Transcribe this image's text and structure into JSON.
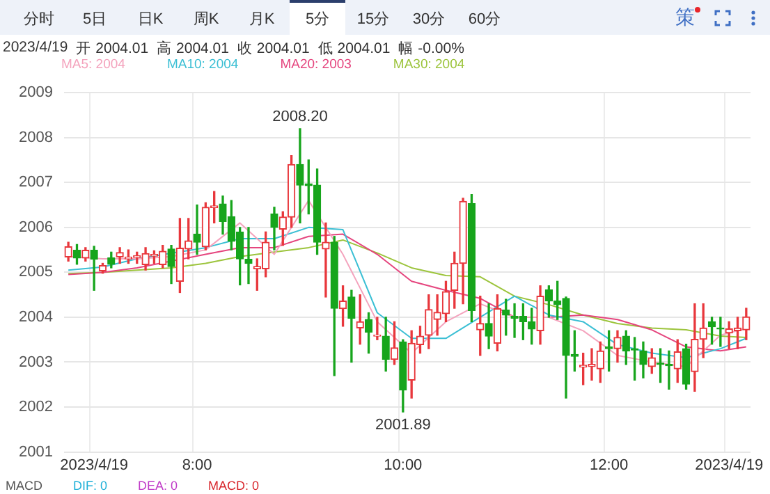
{
  "chart_data": {
    "type": "candlestick",
    "categories": [
      null,
      null,
      null,
      "2023/4/19",
      null,
      null,
      null,
      null,
      null,
      null,
      null,
      null,
      null,
      null,
      null,
      "8:00",
      null,
      null,
      null,
      null,
      null,
      null,
      null,
      null,
      null,
      null,
      null,
      null,
      null,
      null,
      null,
      null,
      null,
      null,
      null,
      null,
      null,
      null,
      null,
      "10:00",
      null,
      null,
      null,
      null,
      null,
      null,
      null,
      null,
      null,
      null,
      null,
      null,
      null,
      null,
      null,
      null,
      null,
      null,
      null,
      null,
      null,
      null,
      null,
      "12:00",
      null,
      null,
      null,
      null,
      null,
      null,
      null,
      null,
      null,
      null,
      null,
      null,
      null,
      "2023/4/19",
      null,
      null
    ],
    "ohlc": [
      [
        2005.34,
        2005.67,
        2005.25,
        2005.57
      ],
      [
        2005.49,
        2005.62,
        2005.18,
        2005.32
      ],
      [
        2005.32,
        2005.55,
        2005.25,
        2005.49
      ],
      [
        2005.49,
        2005.58,
        2004.6,
        2005.29
      ],
      [
        2005.03,
        2005.2,
        2004.98,
        2005.15
      ],
      [
        2005.32,
        2005.45,
        2005.1,
        2005.18
      ],
      [
        2005.34,
        2005.55,
        2005.2,
        2005.44
      ],
      [
        2005.3,
        2005.5,
        2005.2,
        2005.34
      ],
      [
        2005.33,
        2005.45,
        2005.2,
        2005.37
      ],
      [
        2005.17,
        2005.55,
        2005.05,
        2005.42
      ],
      [
        2005.36,
        2005.48,
        2005.2,
        2005.4
      ],
      [
        2005.17,
        2005.6,
        2005.1,
        2005.47
      ],
      [
        2005.52,
        2005.6,
        2004.75,
        2005.13
      ],
      [
        2004.8,
        2006.2,
        2004.55,
        2005.54
      ],
      [
        2005.52,
        2006.2,
        2005.3,
        2005.7
      ],
      [
        2005.85,
        2006.5,
        2005.4,
        2005.67
      ],
      [
        2005.57,
        2006.55,
        2005.5,
        2006.45
      ],
      [
        2006.44,
        2006.8,
        2006.1,
        2006.48
      ],
      [
        2006.52,
        2006.7,
        2005.85,
        2006.13
      ],
      [
        2006.24,
        2006.6,
        2005.5,
        2005.69
      ],
      [
        2005.9,
        2006.0,
        2004.72,
        2005.3
      ],
      [
        2005.29,
        2006.0,
        2004.75,
        2005.2
      ],
      [
        2005.08,
        2005.3,
        2004.6,
        2005.13
      ],
      [
        2005.08,
        2005.9,
        2004.9,
        2005.67
      ],
      [
        2006.3,
        2006.45,
        2005.5,
        2006.0
      ],
      [
        2005.96,
        2006.35,
        2005.6,
        2006.23
      ],
      [
        2006.23,
        2007.6,
        2006.0,
        2007.4
      ],
      [
        2007.4,
        2008.2,
        2006.1,
        2006.94
      ],
      [
        2006.97,
        2007.5,
        2006.3,
        2006.93
      ],
      [
        2006.94,
        2007.3,
        2005.4,
        2005.67
      ],
      [
        2005.52,
        2006.1,
        2004.45,
        2005.67
      ],
      [
        2005.67,
        2005.8,
        2002.7,
        2004.2
      ],
      [
        2004.19,
        2004.7,
        2003.8,
        2004.36
      ],
      [
        2004.45,
        2004.6,
        2003.0,
        2003.98
      ],
      [
        2003.76,
        2004.5,
        2003.4,
        2003.9
      ],
      [
        2003.95,
        2004.1,
        2003.2,
        2003.67
      ],
      [
        2003.58,
        2004.0,
        2003.5,
        2003.6
      ],
      [
        2003.58,
        2004.0,
        2002.8,
        2003.06
      ],
      [
        2003.06,
        2003.9,
        2002.95,
        2003.32
      ],
      [
        2003.45,
        2003.5,
        2001.89,
        2002.38
      ],
      [
        2002.6,
        2003.7,
        2002.2,
        2003.42
      ],
      [
        2003.39,
        2003.8,
        2003.2,
        2003.58
      ],
      [
        2003.6,
        2004.5,
        2003.3,
        2004.17
      ],
      [
        2003.95,
        2004.5,
        2003.6,
        2004.11
      ],
      [
        2004.08,
        2004.8,
        2003.9,
        2004.57
      ],
      [
        2004.6,
        2005.45,
        2004.2,
        2005.2
      ],
      [
        2005.2,
        2006.65,
        2004.3,
        2006.58
      ],
      [
        2006.53,
        2006.73,
        2003.9,
        2004.15
      ],
      [
        2003.72,
        2004.47,
        2003.15,
        2003.86
      ],
      [
        2003.86,
        2004.3,
        2003.3,
        2003.58
      ],
      [
        2003.42,
        2004.5,
        2003.25,
        2004.19
      ],
      [
        2004.16,
        2004.4,
        2003.6,
        2004.05
      ],
      [
        2004.02,
        2004.3,
        2003.55,
        2003.98
      ],
      [
        2004.02,
        2004.3,
        2003.5,
        2003.9
      ],
      [
        2003.9,
        2004.2,
        2003.4,
        2003.74
      ],
      [
        2003.7,
        2004.7,
        2003.4,
        2004.47
      ],
      [
        2004.61,
        2004.7,
        2004.0,
        2004.36
      ],
      [
        2004.36,
        2004.8,
        2003.95,
        2004.28
      ],
      [
        2004.42,
        2004.45,
        2002.2,
        2003.15
      ],
      [
        2003.17,
        2003.7,
        2002.8,
        2003.13
      ],
      [
        2002.89,
        2003.2,
        2002.5,
        2002.93
      ],
      [
        2002.9,
        2003.3,
        2002.6,
        2002.95
      ],
      [
        2002.85,
        2003.45,
        2002.55,
        2003.25
      ],
      [
        2003.34,
        2003.7,
        2002.8,
        2003.3
      ],
      [
        2003.3,
        2003.7,
        2003.0,
        2003.55
      ],
      [
        2003.58,
        2003.7,
        2002.95,
        2003.25
      ],
      [
        2003.3,
        2003.55,
        2002.6,
        2003.27
      ],
      [
        2003.25,
        2003.45,
        2002.65,
        2002.95
      ],
      [
        2002.9,
        2003.3,
        2002.75,
        2003.1
      ],
      [
        2002.98,
        2003.3,
        2002.55,
        2002.95
      ],
      [
        2002.95,
        2003.25,
        2002.4,
        2002.92
      ],
      [
        2002.85,
        2003.5,
        2002.55,
        2003.23
      ],
      [
        2003.3,
        2003.4,
        2002.4,
        2002.51
      ],
      [
        2002.79,
        2004.3,
        2002.35,
        2003.51
      ],
      [
        2003.51,
        2004.3,
        2003.1,
        2003.76
      ],
      [
        2003.9,
        2004.0,
        2003.4,
        2003.79
      ],
      [
        2003.76,
        2004.0,
        2003.35,
        2003.74
      ],
      [
        2003.65,
        2003.9,
        2003.3,
        2003.74
      ],
      [
        2003.7,
        2004.0,
        2003.3,
        2003.76
      ],
      [
        2003.72,
        2004.2,
        2003.5,
        2004.01
      ]
    ],
    "series": [
      {
        "type": "line",
        "name": "MA5: 2004",
        "color": "#f4a3bd",
        "values": [
          2005.35,
          null,
          null,
          null,
          2005.3,
          null,
          null,
          null,
          2005.3,
          null,
          null,
          null,
          2005.35,
          null,
          null,
          null,
          2005.5,
          null,
          null,
          null,
          2006.1,
          null,
          null,
          null,
          2005.4,
          null,
          null,
          null,
          2006.6,
          null,
          null,
          null,
          2005.4,
          null,
          null,
          null,
          2003.9,
          null,
          null,
          null,
          2003.2,
          null,
          null,
          null,
          2003.9,
          null,
          null,
          null,
          2004.3,
          null,
          null,
          null,
          2004.0,
          null,
          null,
          null,
          2004.0,
          null,
          null,
          null,
          2003.7,
          null,
          null,
          null,
          2003.15,
          null,
          null,
          null,
          2003.0,
          null,
          null,
          null,
          2002.9,
          null,
          null,
          null,
          2003.6,
          null,
          null,
          2003.75
        ]
      },
      {
        "type": "line",
        "name": "MA10: 2004",
        "color": "#3bbfd4",
        "values": [
          2005.05,
          null,
          null,
          null,
          2005.12,
          null,
          null,
          null,
          2005.3,
          null,
          null,
          null,
          null,
          null,
          null,
          null,
          2005.55,
          null,
          null,
          null,
          2005.75,
          null,
          null,
          null,
          2005.75,
          null,
          null,
          null,
          2006.0,
          null,
          null,
          null,
          2005.95,
          null,
          null,
          null,
          2004.1,
          null,
          null,
          null,
          2003.53,
          null,
          null,
          null,
          2003.53,
          null,
          null,
          null,
          2004.0,
          null,
          null,
          null,
          2004.47,
          null,
          null,
          null,
          2004.05,
          null,
          null,
          null,
          2003.9,
          null,
          null,
          null,
          2003.39,
          null,
          null,
          null,
          2003.2,
          null,
          null,
          null,
          2003.1,
          null,
          null,
          null,
          2003.3,
          null,
          null,
          2003.53
        ]
      },
      {
        "type": "line",
        "name": "MA20: 2003",
        "color": "#e5457e",
        "values": [
          2004.95,
          null,
          null,
          null,
          2005.0,
          null,
          null,
          null,
          2005.1,
          null,
          null,
          null,
          2005.25,
          null,
          null,
          null,
          2005.4,
          null,
          null,
          null,
          2005.55,
          null,
          null,
          null,
          2005.55,
          null,
          null,
          null,
          2005.8,
          null,
          null,
          null,
          2005.85,
          null,
          null,
          null,
          2005.4,
          null,
          null,
          null,
          2004.8,
          null,
          null,
          null,
          2004.6,
          null,
          null,
          null,
          2004.42,
          null,
          null,
          null,
          2004.0,
          null,
          null,
          null,
          2004.0,
          null,
          null,
          null,
          2004.05,
          null,
          null,
          null,
          2003.95,
          null,
          null,
          null,
          2003.72,
          null,
          null,
          null,
          2003.34,
          null,
          null,
          null,
          2003.25,
          null,
          null,
          2003.34
        ]
      },
      {
        "type": "line",
        "name": "MA30: 2004",
        "color": "#9cc43c",
        "values": [
          2004.97,
          null,
          null,
          null,
          2005.0,
          null,
          null,
          null,
          2005.05,
          null,
          null,
          null,
          2005.1,
          null,
          null,
          null,
          2005.2,
          null,
          null,
          null,
          2005.35,
          null,
          null,
          null,
          2005.45,
          null,
          null,
          null,
          2005.55,
          null,
          null,
          null,
          2005.72,
          null,
          null,
          null,
          2005.43,
          null,
          null,
          null,
          2005.1,
          null,
          null,
          null,
          2004.93,
          null,
          null,
          null,
          2004.9,
          null,
          null,
          null,
          2004.47,
          null,
          null,
          null,
          2004.28,
          null,
          null,
          null,
          2004.05,
          null,
          null,
          null,
          2003.86,
          null,
          null,
          null,
          2003.76,
          null,
          null,
          null,
          2003.72,
          null,
          null,
          null,
          2003.58,
          null,
          null,
          2003.55
        ]
      }
    ],
    "ylim": [
      2001,
      2009
    ],
    "yticks": [
      2001,
      2002,
      2003,
      2004,
      2005,
      2006,
      2007,
      2008,
      2009
    ],
    "grid": true,
    "legend": "top left",
    "marker": "none",
    "line_style": "solid",
    "annotations": [
      "分时",
      "5日",
      "日K",
      "周K",
      "月K",
      "5分",
      "15分",
      "30分",
      "60分",
      "策",
      "2023/4/19",
      "开 2004.01",
      "高 2004.01",
      "收 2004.01",
      "低 2004.01",
      "幅 -0.00%",
      {
        "text": "2008.20",
        "y": 2008.2
      },
      {
        "text": "2001.89",
        "y": 2001.89
      },
      "MACD",
      "DIF: 0",
      "DEA: 0",
      "MACD: 0"
    ]
  }
}
